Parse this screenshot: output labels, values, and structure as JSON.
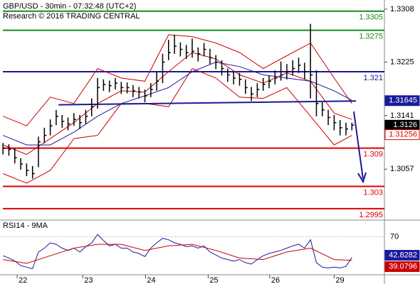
{
  "chart_data": {
    "type": "hlc",
    "title": "GBP/USD - 30min - 07:32:48 (UTC+2)",
    "subtitle": "Research © 2016 TRADING CENTRAL",
    "xlim": [
      -0.5,
      64.5
    ],
    "xticks": [
      {
        "value": 2.4,
        "label": "22"
      },
      {
        "value": 13.5,
        "label": "23"
      },
      {
        "value": 24.1,
        "label": "24"
      },
      {
        "value": 34.7,
        "label": "25"
      },
      {
        "value": 45.1,
        "label": "26"
      },
      {
        "value": 56,
        "label": "29"
      }
    ],
    "ylim": [
      1.2977,
      1.33225
    ],
    "yticks": [
      1.3308,
      1.3225,
      1.3141,
      1.3057
    ],
    "bar_color": "#000000",
    "close": [
      1.309,
      1.3088,
      1.3075,
      1.3065,
      1.3055,
      1.305,
      1.31,
      1.311,
      1.3125,
      1.314,
      1.3132,
      1.3128,
      1.3135,
      1.313,
      1.314,
      1.3155,
      1.3185,
      1.319,
      1.3188,
      1.3192,
      1.3185,
      1.3185,
      1.318,
      1.3178,
      1.3172,
      1.3182,
      1.3195,
      1.3225,
      1.324,
      1.325,
      1.3245,
      1.324,
      1.3242,
      1.3238,
      1.3245,
      1.3232,
      1.3225,
      1.3215,
      1.3205,
      1.32,
      1.3198,
      1.3185,
      1.3175,
      1.3182,
      1.319,
      1.3195,
      1.32,
      1.3205,
      1.321,
      1.3215,
      1.322,
      1.321,
      1.3205,
      1.316,
      1.315,
      1.3138,
      1.313,
      1.3122,
      1.312,
      1.3126
    ],
    "high": [
      1.3098,
      1.3096,
      1.309,
      1.3074,
      1.3066,
      1.3062,
      1.3108,
      1.3122,
      1.3135,
      1.315,
      1.3142,
      1.3138,
      1.3145,
      1.3142,
      1.315,
      1.3168,
      1.32,
      1.3198,
      1.3196,
      1.32,
      1.3194,
      1.3193,
      1.3189,
      1.3186,
      1.3182,
      1.3192,
      1.321,
      1.3238,
      1.326,
      1.3268,
      1.3256,
      1.3252,
      1.3262,
      1.3248,
      1.3255,
      1.3246,
      1.3236,
      1.3228,
      1.3215,
      1.321,
      1.3208,
      1.3198,
      1.3186,
      1.3192,
      1.32,
      1.3204,
      1.3212,
      1.3226,
      1.3222,
      1.3228,
      1.3232,
      1.3224,
      1.3285,
      1.3212,
      1.3162,
      1.315,
      1.3142,
      1.3134,
      1.313,
      1.313
    ],
    "low": [
      1.308,
      1.3078,
      1.3066,
      1.3056,
      1.3046,
      1.3042,
      1.306,
      1.3098,
      1.311,
      1.3126,
      1.3122,
      1.3118,
      1.3125,
      1.312,
      1.3128,
      1.314,
      1.3152,
      1.318,
      1.3178,
      1.3182,
      1.3175,
      1.3176,
      1.317,
      1.3168,
      1.3162,
      1.317,
      1.318,
      1.3192,
      1.3228,
      1.3238,
      1.3234,
      1.323,
      1.3232,
      1.3226,
      1.3234,
      1.3222,
      1.3214,
      1.3204,
      1.3194,
      1.319,
      1.3188,
      1.3175,
      1.3164,
      1.317,
      1.318,
      1.3184,
      1.319,
      1.3196,
      1.3198,
      1.3204,
      1.3208,
      1.3198,
      1.3168,
      1.314,
      1.314,
      1.3126,
      1.3118,
      1.311,
      1.311,
      1.3118
    ],
    "overlays": [
      {
        "color": "#cc0000",
        "x": [
          0,
          4,
          8,
          12,
          16,
          20,
          24,
          28,
          32,
          36,
          40,
          44,
          48,
          52,
          56,
          59
        ],
        "values": [
          1.314,
          1.3125,
          1.317,
          1.316,
          1.3215,
          1.32,
          1.3195,
          1.3268,
          1.3265,
          1.3255,
          1.324,
          1.3215,
          1.3235,
          1.3255,
          1.32,
          1.316
        ]
      },
      {
        "color": "#cc0000",
        "x": [
          0,
          4,
          8,
          12,
          16,
          20,
          24,
          28,
          32,
          36,
          40,
          44,
          48,
          52,
          56,
          59
        ],
        "values": [
          1.305,
          1.3035,
          1.3055,
          1.3105,
          1.311,
          1.316,
          1.316,
          1.3155,
          1.3215,
          1.32,
          1.317,
          1.3168,
          1.3185,
          1.314,
          1.3095,
          1.311
        ]
      },
      {
        "color": "#cc0000",
        "x": [
          0,
          4,
          8,
          12,
          16,
          20,
          24,
          28,
          32,
          36,
          40,
          44,
          48,
          52,
          56,
          59
        ],
        "values": [
          1.3095,
          1.308,
          1.3105,
          1.313,
          1.316,
          1.318,
          1.3178,
          1.321,
          1.324,
          1.323,
          1.3205,
          1.3192,
          1.3208,
          1.3195,
          1.3145,
          1.3135
        ]
      },
      {
        "color": "#1a1a9a",
        "x": [
          0,
          4,
          8,
          12,
          16,
          20,
          24,
          28,
          32,
          36,
          40,
          44,
          48,
          52,
          56,
          59
        ],
        "values": [
          1.311,
          1.3095,
          1.3095,
          1.3115,
          1.314,
          1.316,
          1.3172,
          1.3185,
          1.321,
          1.3225,
          1.3218,
          1.3205,
          1.32,
          1.3195,
          1.318,
          1.3165
        ]
      }
    ],
    "levels": [
      {
        "value": 1.3305,
        "color": "#1a8a1a"
      },
      {
        "value": 1.3275,
        "color": "#1a8a1a"
      },
      {
        "value": 1.321,
        "color": "#1a1a9a"
      },
      {
        "value": 1.309,
        "color": "#dd0000"
      },
      {
        "value": 1.303,
        "color": "#dd0000"
      },
      {
        "value": 1.2995,
        "color": "#dd0000"
      }
    ],
    "trendline": {
      "color": "#1a1a9a",
      "x": [
        9.4,
        59.7
      ],
      "values": [
        1.3158,
        1.3164
      ]
    },
    "markers": [
      {
        "value": 1.31645,
        "color": "#1a1a9a"
      },
      {
        "value": 1.31256,
        "color": "#dd0000"
      }
    ],
    "rsi": {
      "title": "RSI14 - 9MA",
      "ylim": [
        20,
        90
      ],
      "yticks": [
        70
      ],
      "series": [
        {
          "color": "#1a1a9a",
          "values": [
            45,
            42,
            38,
            32,
            30,
            28,
            50,
            55,
            62,
            60,
            55,
            52,
            55,
            50,
            57,
            62,
            73,
            65,
            58,
            60,
            55,
            55,
            50,
            48,
            44,
            55,
            62,
            68,
            66,
            62,
            60,
            57,
            58,
            55,
            58,
            50,
            46,
            42,
            40,
            38,
            40,
            36,
            34,
            40,
            45,
            48,
            50,
            52,
            55,
            58,
            60,
            55,
            66,
            36,
            30,
            29,
            30,
            29,
            31,
            42.8282
          ]
        },
        {
          "color": "#cc0000",
          "x": [
            0,
            4,
            8,
            12,
            16,
            20,
            24,
            28,
            32,
            36,
            40,
            44,
            48,
            52,
            56,
            59
          ],
          "values": [
            40,
            35,
            45,
            55,
            60,
            60,
            52,
            58,
            60,
            52,
            42,
            40,
            50,
            55,
            40,
            39.0796
          ]
        }
      ]
    }
  }
}
